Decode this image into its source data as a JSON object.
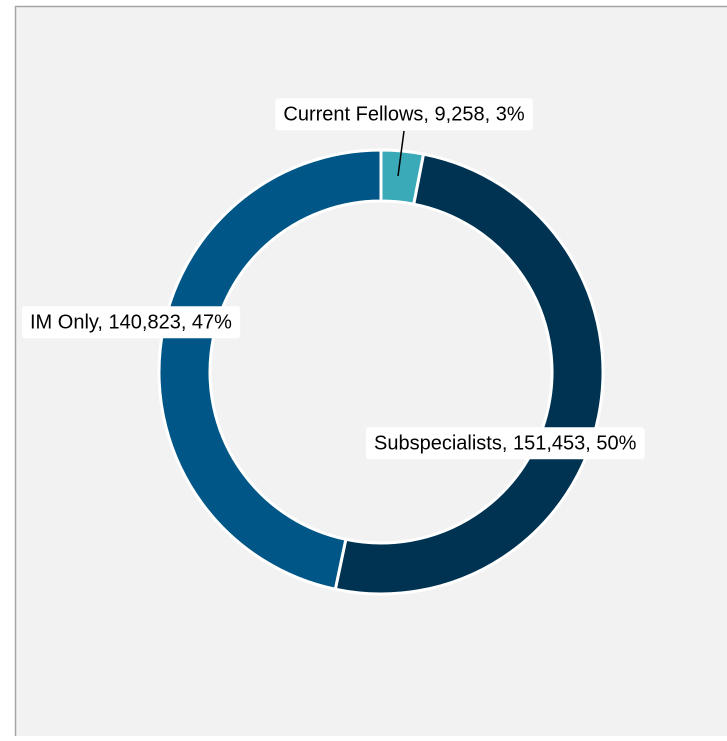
{
  "chart_data": {
    "type": "donut",
    "values": [
      9258,
      151453,
      140823
    ],
    "value_labels": [
      "Current Fellows, 9,258, 3%",
      "Subspecialists, 151,453, 50%",
      "IM Only, 140,823, 47%"
    ],
    "colors": [
      "#3aa9b8",
      "#003352",
      "#005686"
    ]
  }
}
